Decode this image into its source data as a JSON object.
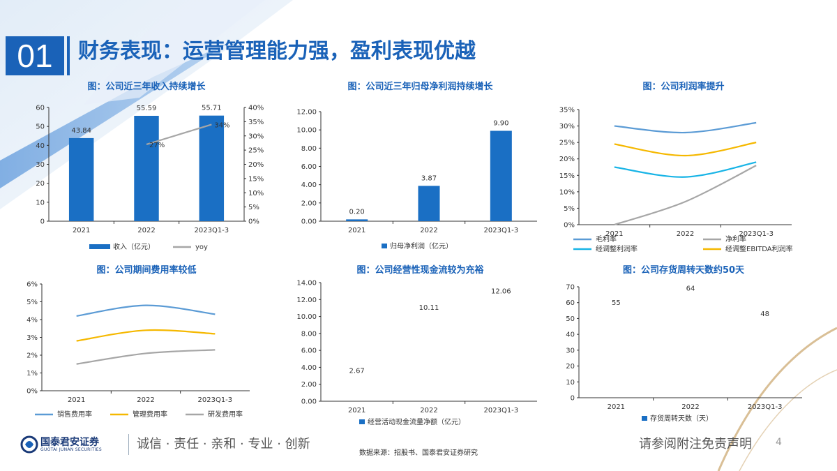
{
  "header": {
    "section_number": "01",
    "title": "财务表现：运营管理能力强，盈利表现优越"
  },
  "colors": {
    "primary_blue": "#1a6fc4",
    "light_blue": "#5b9bd5",
    "cyan": "#18b4e6",
    "gold": "#f5b800",
    "gray": "#a6a6a6"
  },
  "footer": {
    "company": "国泰君安证券",
    "company_en": "GUOTAI JUNAN SECURITIES",
    "slogan": "诚信 · 责任 · 亲和 · 专业 · 创新",
    "source": "数据来源：招股书、国泰君安证券研究",
    "disclaimer": "请参阅附注免责声明",
    "page": "4"
  },
  "chart_data": [
    {
      "type": "bar",
      "title": "图：公司近三年收入持续增长",
      "categories": [
        "2021",
        "2022",
        "2023Q1-3"
      ],
      "series": [
        {
          "name": "收入（亿元）",
          "type": "bar",
          "axis": "left",
          "values": [
            43.84,
            55.59,
            55.71
          ],
          "labels": [
            "43.84",
            "55.59",
            "55.71"
          ]
        },
        {
          "name": "yoy",
          "type": "line",
          "axis": "right",
          "values": [
            null,
            0.27,
            0.34
          ],
          "labels": [
            "",
            "27%",
            "34%"
          ]
        }
      ],
      "ylim": [
        0,
        60
      ],
      "yticks": [
        "0",
        "10",
        "20",
        "30",
        "40",
        "50",
        "60"
      ],
      "y2lim": [
        0,
        0.4
      ],
      "y2ticks": [
        "0%",
        "5%",
        "10%",
        "15%",
        "20%",
        "25%",
        "30%",
        "35%",
        "40%"
      ],
      "legend": "bottom"
    },
    {
      "type": "bar",
      "title": "图：公司近三年归母净利润持续增长",
      "categories": [
        "2021",
        "2022",
        "2023Q1-3"
      ],
      "series": [
        {
          "name": "归母净利润（亿元）",
          "values": [
            0.2,
            3.87,
            9.9
          ],
          "labels": [
            "0.20",
            "3.87",
            "9.90"
          ]
        }
      ],
      "ylim": [
        0,
        12
      ],
      "yticks": [
        "0.00",
        "2.00",
        "4.00",
        "6.00",
        "8.00",
        "10.00",
        "12.00"
      ],
      "legend": "bottom"
    },
    {
      "type": "line",
      "title": "图：公司利润率提升",
      "categories": [
        "2021",
        "2022",
        "2023Q1-3"
      ],
      "series": [
        {
          "name": "毛利率",
          "values": [
            0.3,
            0.28,
            0.31
          ]
        },
        {
          "name": "净利率",
          "values": [
            0.0,
            0.07,
            0.18
          ]
        },
        {
          "name": "经调整利润率",
          "values": [
            0.175,
            0.145,
            0.19
          ]
        },
        {
          "name": "经调整EBITDA利润率",
          "values": [
            0.245,
            0.21,
            0.25
          ]
        }
      ],
      "ylim": [
        0,
        0.35
      ],
      "yticks": [
        "0%",
        "5%",
        "10%",
        "15%",
        "20%",
        "25%",
        "30%",
        "35%"
      ],
      "legend": "bottom"
    },
    {
      "type": "line",
      "title": "图：公司期间费用率较低",
      "categories": [
        "2021",
        "2022",
        "2023Q1-3"
      ],
      "series": [
        {
          "name": "销售费用率",
          "values": [
            0.042,
            0.048,
            0.043
          ]
        },
        {
          "name": "管理费用率",
          "values": [
            0.028,
            0.034,
            0.032
          ]
        },
        {
          "name": "研发费用率",
          "values": [
            0.015,
            0.021,
            0.023
          ]
        }
      ],
      "ylim": [
        0,
        0.06
      ],
      "yticks": [
        "0%",
        "1%",
        "2%",
        "3%",
        "4%",
        "5%",
        "6%"
      ],
      "legend": "bottom"
    },
    {
      "type": "bar",
      "title": "图：公司经营性现金流较为充裕",
      "categories": [
        "2021",
        "2022",
        "2023Q1-3"
      ],
      "series": [
        {
          "name": "经营活动现金流量净额（亿元）",
          "values": [
            2.67,
            10.11,
            12.06
          ],
          "labels": [
            "2.67",
            "10.11",
            "12.06"
          ]
        }
      ],
      "ylim": [
        0,
        14
      ],
      "yticks": [
        "0.00",
        "2.00",
        "4.00",
        "6.00",
        "8.00",
        "10.00",
        "12.00",
        "14.00"
      ],
      "legend": "bottom"
    },
    {
      "type": "bar",
      "title": "图：公司存货周转天数约50天",
      "categories": [
        "2021",
        "2022",
        "2023Q1-3"
      ],
      "series": [
        {
          "name": "存货周转天数（天）",
          "values": [
            55,
            64,
            48
          ],
          "labels": [
            "55",
            "64",
            "48"
          ]
        }
      ],
      "ylim": [
        0,
        70
      ],
      "yticks": [
        "0",
        "10",
        "20",
        "30",
        "40",
        "50",
        "60",
        "70"
      ],
      "legend": "bottom"
    }
  ]
}
